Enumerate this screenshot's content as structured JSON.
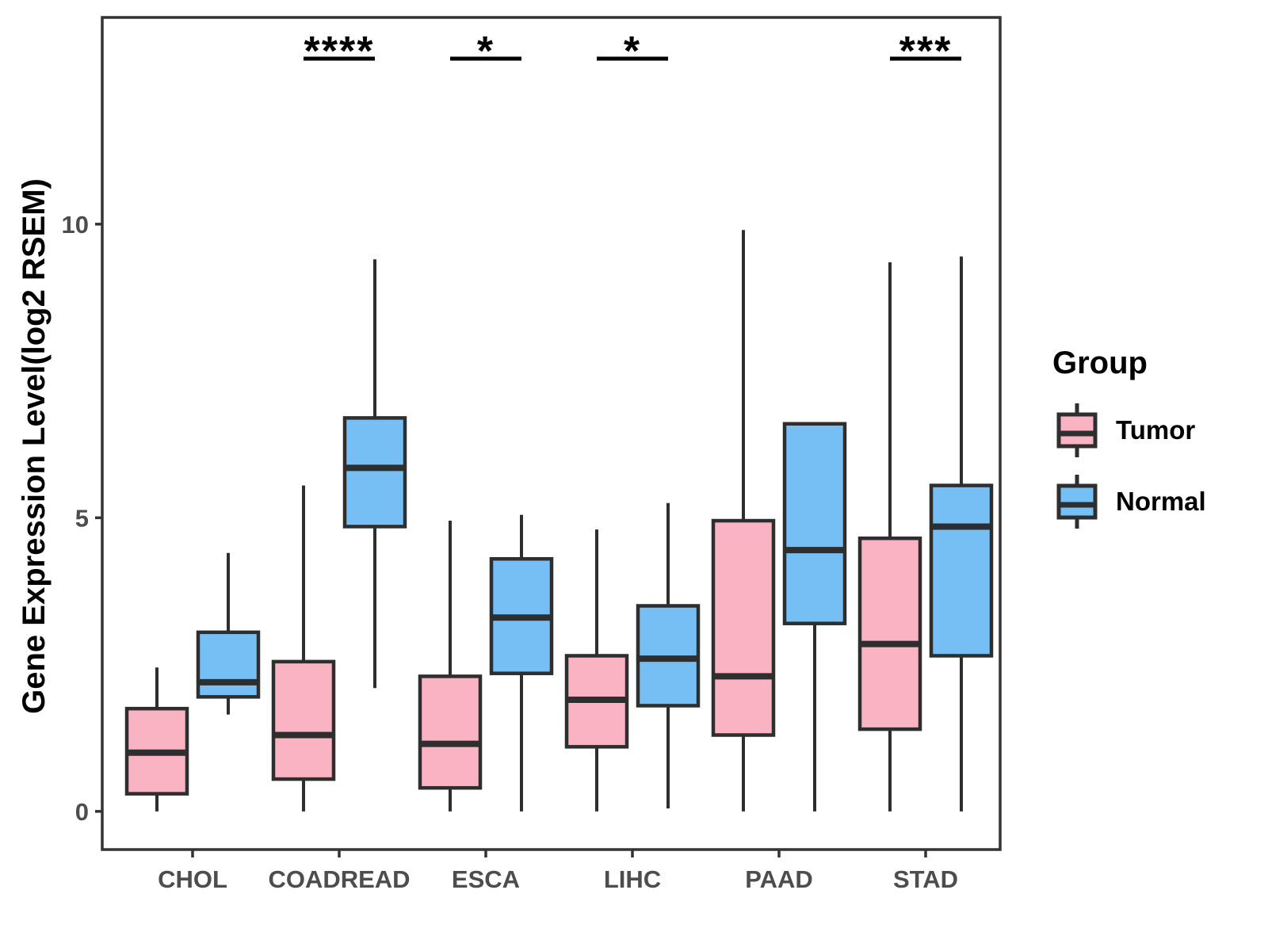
{
  "y_axis": {
    "label": "Gene Expression Level(log2 RSEM)",
    "tick_labels": [
      "0",
      "5",
      "10"
    ]
  },
  "legend": {
    "title": "Group",
    "items": [
      {
        "label": "Tumor",
        "color": "#F9B3C2"
      },
      {
        "label": "Normal",
        "color": "#76BFF4"
      }
    ]
  },
  "colors": {
    "tumor_fill": "#F9B3C2",
    "normal_fill": "#76BFF4",
    "box_border": "#2E2E2E",
    "axis_border": "#333333",
    "tick_text": "#4D4D4D",
    "significance": "#000000",
    "background": "#FFFFFF"
  },
  "chart_data": {
    "type": "boxplot",
    "title": "",
    "xlabel": "",
    "ylabel": "Gene Expression Level(log2 RSEM)",
    "categories": [
      "CHOL",
      "COADREAD",
      "ESCA",
      "LIHC",
      "PAAD",
      "STAD"
    ],
    "y_ticks": [
      0,
      5,
      10
    ],
    "ylim": [
      -0.65,
      13.52
    ],
    "grid": false,
    "legend_position": "right",
    "series": [
      {
        "name": "Tumor",
        "color": "#F9B3C2",
        "boxes": [
          {
            "low": 0.0,
            "q1": 0.3,
            "median": 1.0,
            "q3": 1.75,
            "high": 2.45
          },
          {
            "low": 0.0,
            "q1": 0.55,
            "median": 1.3,
            "q3": 2.55,
            "high": 5.55
          },
          {
            "low": 0.0,
            "q1": 0.4,
            "median": 1.15,
            "q3": 2.3,
            "high": 4.95
          },
          {
            "low": 0.0,
            "q1": 1.1,
            "median": 1.9,
            "q3": 2.65,
            "high": 4.8
          },
          {
            "low": 0.0,
            "q1": 1.3,
            "median": 2.3,
            "q3": 4.95,
            "high": 9.9
          },
          {
            "low": 0.0,
            "q1": 1.4,
            "median": 2.85,
            "q3": 4.65,
            "high": 9.35
          }
        ]
      },
      {
        "name": "Normal",
        "color": "#76BFF4",
        "boxes": [
          {
            "low": 1.65,
            "q1": 1.95,
            "median": 2.2,
            "q3": 3.05,
            "high": 4.4
          },
          {
            "low": 2.1,
            "q1": 4.85,
            "median": 5.85,
            "q3": 6.7,
            "high": 9.4
          },
          {
            "low": 0.0,
            "q1": 2.35,
            "median": 3.3,
            "q3": 4.3,
            "high": 5.05
          },
          {
            "low": 0.05,
            "q1": 1.8,
            "median": 2.6,
            "q3": 3.5,
            "high": 5.25
          },
          {
            "low": 0.0,
            "q1": 3.2,
            "median": 4.45,
            "q3": 6.6,
            "high": 6.6
          },
          {
            "low": 0.0,
            "q1": 2.65,
            "median": 4.85,
            "q3": 5.55,
            "high": 9.45
          }
        ]
      }
    ],
    "significance": [
      {
        "category": "COADREAD",
        "label": "****"
      },
      {
        "category": "ESCA",
        "label": "*"
      },
      {
        "category": "LIHC",
        "label": "*"
      },
      {
        "category": "STAD",
        "label": "***"
      }
    ]
  }
}
